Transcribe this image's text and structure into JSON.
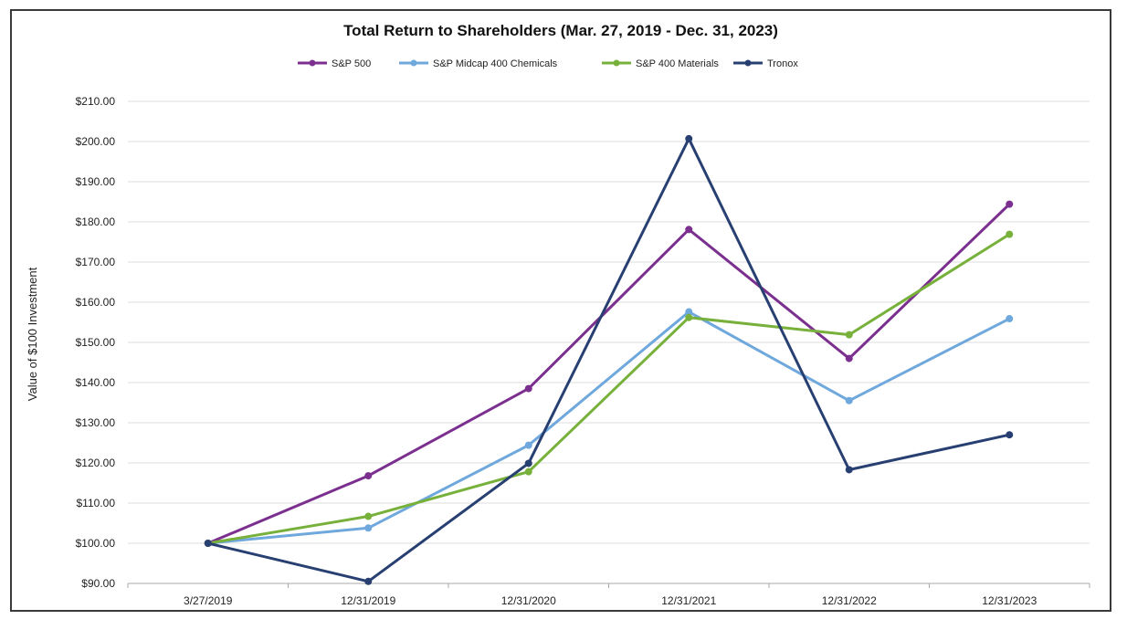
{
  "chart_data": {
    "type": "line",
    "title": "Total Return to Shareholders (Mar. 27, 2019 - Dec. 31, 2023)",
    "ylabel": "Value of $100 Investment",
    "xlabel": "",
    "categories": [
      "3/27/2019",
      "12/31/2019",
      "12/31/2020",
      "12/31/2021",
      "12/31/2022",
      "12/31/2023"
    ],
    "ylim": [
      90,
      210
    ],
    "ytick_step": 10,
    "yticks": [
      "$90.00",
      "$100.00",
      "$110.00",
      "$120.00",
      "$130.00",
      "$140.00",
      "$150.00",
      "$160.00",
      "$170.00",
      "$180.00",
      "$190.00",
      "$200.00",
      "$210.00"
    ],
    "grid": true,
    "legend_position": "top",
    "series": [
      {
        "name": "S&P 500",
        "color": "#7b2f8e",
        "values": [
          100.0,
          116.8,
          138.5,
          178.1,
          146.0,
          184.4
        ]
      },
      {
        "name": "S&P Midcap 400 Chemicals",
        "color": "#6fa8dc",
        "values": [
          100.0,
          103.8,
          124.4,
          157.6,
          135.5,
          155.9
        ]
      },
      {
        "name": "S&P 400 Materials",
        "color": "#77b13b",
        "values": [
          100.0,
          106.7,
          117.8,
          156.2,
          151.9,
          176.9
        ]
      },
      {
        "name": "Tronox",
        "color": "#283f72",
        "values": [
          100.0,
          90.5,
          119.9,
          200.7,
          118.3,
          127.0
        ]
      }
    ]
  }
}
